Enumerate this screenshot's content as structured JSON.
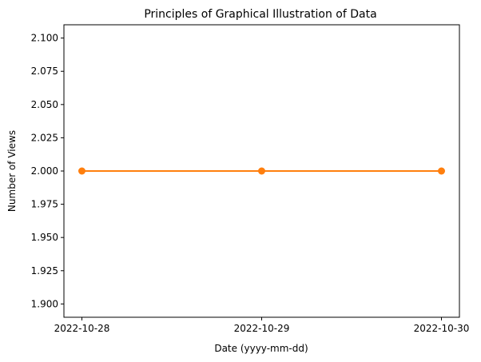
{
  "chart_data": {
    "type": "line",
    "title": "Principles of Graphical Illustration of Data",
    "xlabel": "Date (yyyy-mm-dd)",
    "ylabel": "Number of Views",
    "x": [
      "2022-10-28",
      "2022-10-29",
      "2022-10-30"
    ],
    "series": [
      {
        "values": [
          2.0,
          2.0,
          2.0
        ],
        "color": "#ff7f0e",
        "marker": "circle"
      }
    ],
    "ylim": [
      1.89,
      2.11
    ],
    "yticks": [
      1.9,
      1.925,
      1.95,
      1.975,
      2.0,
      2.025,
      2.05,
      2.075,
      2.1
    ],
    "ytick_labels": [
      "1.900",
      "1.925",
      "1.950",
      "1.975",
      "2.000",
      "2.025",
      "2.050",
      "2.075",
      "2.100"
    ],
    "grid": false,
    "legend": "none"
  }
}
